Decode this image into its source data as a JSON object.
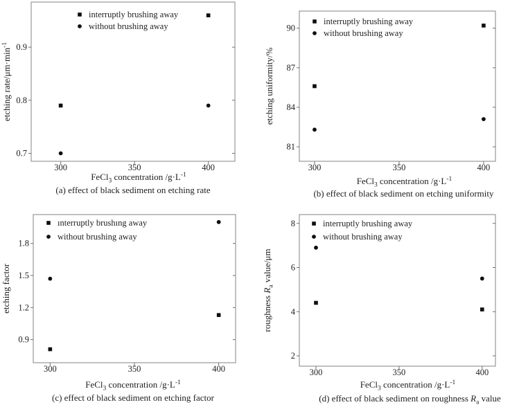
{
  "figure": {
    "background": "#ffffff",
    "frame_color": "#8e8e8e",
    "tick_color": "#6f6f6f",
    "text_color": "#1e1e1e",
    "marker_color": "#0f0f0f"
  },
  "chart_data": [
    {
      "id": "a",
      "type": "scatter",
      "caption": [
        {
          "t": "(a) effect of black sediment on etching rate"
        }
      ],
      "xlabel": [
        {
          "t": "FeCl"
        },
        {
          "t": "3",
          "sub": true
        },
        {
          "t": " concentration /g·L"
        },
        {
          "t": "-1",
          "sup": true
        }
      ],
      "ylabel": [
        {
          "t": "etching rate/μm·min"
        },
        {
          "t": "-1",
          "sup": true
        }
      ],
      "xlim": [
        280,
        418
      ],
      "ylim": [
        0.685,
        0.985
      ],
      "xticks": [
        {
          "v": 300,
          "label": "300"
        },
        {
          "v": 350,
          "label": "350"
        },
        {
          "v": 400,
          "label": "400"
        }
      ],
      "yticks": [
        {
          "v": 0.7,
          "label": "0.7"
        },
        {
          "v": 0.8,
          "label": "0.8"
        },
        {
          "v": 0.9,
          "label": "0.9"
        }
      ],
      "legend_position": "top-left",
      "series": [
        {
          "name": "interruptly brushing away",
          "marker": "square",
          "points": [
            [
              300,
              0.79
            ],
            [
              400,
              0.96
            ]
          ]
        },
        {
          "name": "without brushing away",
          "marker": "circle",
          "points": [
            [
              300,
              0.7
            ],
            [
              400,
              0.79
            ]
          ]
        }
      ]
    },
    {
      "id": "b",
      "type": "scatter",
      "caption": [
        {
          "t": "(b) effect of black sediment on etching uniformity"
        }
      ],
      "xlabel": [
        {
          "t": "FeCl"
        },
        {
          "t": "3",
          "sub": true
        },
        {
          "t": " concentration /g·L"
        },
        {
          "t": "-1",
          "sup": true
        }
      ],
      "ylabel": [
        {
          "t": "etching uniformity/%"
        }
      ],
      "xlim": [
        291,
        407
      ],
      "ylim": [
        79.9,
        91.3
      ],
      "xticks": [
        {
          "v": 300,
          "label": "300"
        },
        {
          "v": 350,
          "label": "350"
        },
        {
          "v": 400,
          "label": "400"
        }
      ],
      "yticks": [
        {
          "v": 81,
          "label": "81"
        },
        {
          "v": 84,
          "label": "84"
        },
        {
          "v": 87,
          "label": "87"
        },
        {
          "v": 90,
          "label": "90"
        }
      ],
      "legend_position": "top-left",
      "series": [
        {
          "name": "interruptly brushing away",
          "marker": "square",
          "points": [
            [
              300,
              85.6
            ],
            [
              400,
              90.2
            ]
          ]
        },
        {
          "name": "without brushing away",
          "marker": "circle",
          "points": [
            [
              300,
              82.3
            ],
            [
              400,
              83.1
            ]
          ]
        }
      ]
    },
    {
      "id": "c",
      "type": "scatter",
      "caption": [
        {
          "t": "(c) effect of black sediment on etching factor"
        }
      ],
      "xlabel": [
        {
          "t": "FeCl"
        },
        {
          "t": "3",
          "sub": true
        },
        {
          "t": " concentration /g·L"
        },
        {
          "t": "-1",
          "sup": true
        }
      ],
      "ylabel": [
        {
          "t": "etching factor"
        }
      ],
      "xlim": [
        290,
        410
      ],
      "ylim": [
        0.684,
        2.07
      ],
      "xticks": [
        {
          "v": 300,
          "label": "300"
        },
        {
          "v": 350,
          "label": "350"
        },
        {
          "v": 400,
          "label": "400"
        }
      ],
      "yticks": [
        {
          "v": 0.9,
          "label": "0.9"
        },
        {
          "v": 1.2,
          "label": "1.2"
        },
        {
          "v": 1.5,
          "label": "1.5"
        },
        {
          "v": 1.8,
          "label": "1.8"
        }
      ],
      "legend_position": "top-left",
      "series": [
        {
          "name": "ınterruptly brushıng away",
          "marker": "square",
          "points": [
            [
              300,
              0.81
            ],
            [
              400,
              1.13
            ]
          ]
        },
        {
          "name": "without brushing away",
          "marker": "circle",
          "points": [
            [
              300,
              1.47
            ],
            [
              400,
              2.0
            ]
          ]
        }
      ]
    },
    {
      "id": "d",
      "type": "scatter",
      "caption": [
        {
          "t": "(d) effect of black sediment on roughness "
        },
        {
          "t": "R",
          "i": true
        },
        {
          "t": "a",
          "sub": true
        },
        {
          "t": " value"
        }
      ],
      "xlabel": [
        {
          "t": "FeCl"
        },
        {
          "t": "3",
          "sub": true
        },
        {
          "t": " concentration /g·L"
        },
        {
          "t": "-1",
          "sup": true
        }
      ],
      "ylabel": [
        {
          "t": "roughness "
        },
        {
          "t": "R",
          "i": true
        },
        {
          "t": "a",
          "sub": true
        },
        {
          "t": " value/μm"
        }
      ],
      "xlim": [
        290,
        408
      ],
      "ylim": [
        1.53,
        8.4
      ],
      "xticks": [
        {
          "v": 300,
          "label": "300"
        },
        {
          "v": 350,
          "label": "350"
        },
        {
          "v": 400,
          "label": "400"
        }
      ],
      "yticks": [
        {
          "v": 2,
          "label": "2"
        },
        {
          "v": 4,
          "label": "4"
        },
        {
          "v": 6,
          "label": "6"
        },
        {
          "v": 8,
          "label": "8"
        }
      ],
      "legend_position": "top-left",
      "series": [
        {
          "name": "interruptly brushing away",
          "marker": "square",
          "points": [
            [
              300,
              4.4
            ],
            [
              400,
              4.1
            ]
          ]
        },
        {
          "name": "without brushing away",
          "marker": "circle",
          "points": [
            [
              300,
              6.9
            ],
            [
              400,
              5.5
            ]
          ]
        }
      ]
    }
  ]
}
